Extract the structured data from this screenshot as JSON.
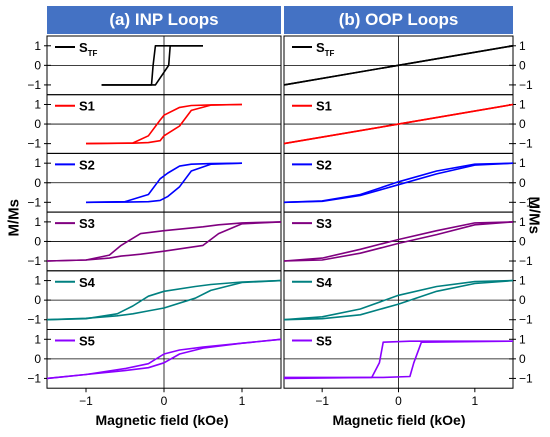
{
  "headers": {
    "left": "(a) INP Loops",
    "right": "(b) OOP Loops"
  },
  "ylabel": "M/Ms",
  "xlabel": "Magnetic field (kOe)",
  "chart_data": [
    {
      "type": "line",
      "title": "(a) INP Loops",
      "xlabel": "Magnetic field (kOe)",
      "ylabel": "M/Ms",
      "xlim": [
        -1.5,
        1.5
      ],
      "xticks": [
        -1,
        0,
        1
      ],
      "ylim": [
        -1.5,
        1.5
      ],
      "yticks": [
        -1,
        0,
        1
      ],
      "grid": false,
      "panels": [
        {
          "label": "S_TF",
          "color": "#000000",
          "x": [
            -0.8,
            -0.16,
            -0.14,
            -0.11,
            0.06,
            0.08,
            0.5
          ],
          "branch_down": [
            -1,
            -1,
            0.0,
            1,
            1,
            1,
            1
          ],
          "branch_up": [
            -1,
            -1,
            -1,
            -1,
            0.0,
            1,
            1
          ]
        },
        {
          "label": "S1",
          "color": "#ff0000",
          "x": [
            -1.0,
            -0.4,
            -0.2,
            -0.05,
            0.0,
            0.2,
            0.35,
            0.6,
            1.0
          ],
          "branch_down": [
            -1,
            -0.97,
            -0.6,
            0.2,
            0.45,
            0.85,
            0.95,
            0.98,
            1
          ],
          "branch_up": [
            -1,
            -0.98,
            -0.95,
            -0.85,
            -0.6,
            -0.1,
            0.7,
            0.97,
            1
          ]
        },
        {
          "label": "S2",
          "color": "#0000ff",
          "x": [
            -1.0,
            -0.5,
            -0.2,
            -0.05,
            0.05,
            0.2,
            0.35,
            0.6,
            1.0
          ],
          "branch_down": [
            -1,
            -0.97,
            -0.6,
            0.2,
            0.5,
            0.85,
            0.95,
            0.98,
            1
          ],
          "branch_up": [
            -1,
            -0.99,
            -0.97,
            -0.9,
            -0.7,
            -0.2,
            0.6,
            0.95,
            1
          ]
        },
        {
          "label": "S3",
          "color": "#800080",
          "x": [
            -1.5,
            -1.0,
            -0.7,
            -0.55,
            -0.3,
            0.0,
            0.5,
            0.7,
            1.0,
            1.5
          ],
          "branch_down": [
            -1,
            -0.95,
            -0.7,
            -0.2,
            0.4,
            0.55,
            0.75,
            0.85,
            0.95,
            1
          ],
          "branch_up": [
            -1,
            -0.95,
            -0.85,
            -0.75,
            -0.65,
            -0.5,
            -0.2,
            0.4,
            0.9,
            1
          ]
        },
        {
          "label": "S4",
          "color": "#008080",
          "x": [
            -1.5,
            -1.0,
            -0.6,
            -0.4,
            -0.2,
            0.0,
            0.4,
            0.6,
            1.0,
            1.5
          ],
          "branch_down": [
            -1,
            -0.95,
            -0.7,
            -0.3,
            0.2,
            0.45,
            0.7,
            0.8,
            0.93,
            1
          ],
          "branch_up": [
            -1,
            -0.93,
            -0.8,
            -0.7,
            -0.55,
            -0.4,
            0.1,
            0.5,
            0.9,
            1
          ]
        },
        {
          "label": "S5",
          "color": "#8b00ff",
          "x": [
            -1.5,
            -1.0,
            -0.5,
            -0.2,
            0.0,
            0.2,
            0.5,
            1.0,
            1.5
          ],
          "branch_down": [
            -1,
            -0.8,
            -0.5,
            -0.25,
            0.25,
            0.45,
            0.6,
            0.8,
            1
          ],
          "branch_up": [
            -1,
            -0.8,
            -0.6,
            -0.45,
            -0.2,
            0.25,
            0.55,
            0.8,
            1
          ]
        }
      ]
    },
    {
      "type": "line",
      "title": "(b) OOP Loops",
      "xlabel": "Magnetic field (kOe)",
      "ylabel": "M/Ms",
      "xlim": [
        -1.5,
        1.5
      ],
      "xticks": [
        -1,
        0,
        1
      ],
      "ylim": [
        -1.5,
        1.5
      ],
      "yticks": [
        -1,
        0,
        1
      ],
      "grid": false,
      "panels": [
        {
          "label": "S_TF",
          "color": "#000000",
          "x": [
            -1.5,
            0.0,
            1.5
          ],
          "branch_down": [
            -1,
            0,
            1
          ],
          "branch_up": [
            -1,
            0,
            1
          ]
        },
        {
          "label": "S1",
          "color": "#ff0000",
          "x": [
            -1.5,
            0.0,
            1.5
          ],
          "branch_down": [
            -1,
            0,
            1
          ],
          "branch_up": [
            -1,
            0,
            1
          ]
        },
        {
          "label": "S2",
          "color": "#0000ff",
          "x": [
            -1.5,
            -1.0,
            -0.5,
            0.0,
            0.5,
            1.0,
            1.5
          ],
          "branch_down": [
            -1,
            -0.93,
            -0.6,
            0.05,
            0.6,
            0.95,
            1
          ],
          "branch_up": [
            -1,
            -0.95,
            -0.65,
            -0.1,
            0.45,
            0.9,
            1
          ]
        },
        {
          "label": "S3",
          "color": "#800080",
          "x": [
            -1.5,
            -1.0,
            -0.5,
            0.0,
            0.5,
            1.0,
            1.5
          ],
          "branch_down": [
            -1,
            -0.85,
            -0.4,
            0.1,
            0.55,
            0.95,
            1
          ],
          "branch_up": [
            -1,
            -0.95,
            -0.6,
            -0.1,
            0.35,
            0.85,
            1
          ]
        },
        {
          "label": "S4",
          "color": "#008080",
          "x": [
            -1.5,
            -1.0,
            -0.5,
            0.0,
            0.5,
            1.0,
            1.5
          ],
          "branch_down": [
            -1,
            -0.85,
            -0.45,
            0.25,
            0.7,
            0.95,
            1
          ],
          "branch_up": [
            -1,
            -0.95,
            -0.75,
            -0.2,
            0.45,
            0.85,
            1
          ]
        },
        {
          "label": "S5",
          "color": "#8b00ff",
          "x": [
            -1.5,
            -0.35,
            -0.25,
            -0.2,
            0.15,
            0.2,
            0.3,
            1.5
          ],
          "branch_down": [
            -1,
            -0.95,
            -0.2,
            0.85,
            0.9,
            0.9,
            0.9,
            0.9
          ],
          "branch_up": [
            -0.95,
            -0.95,
            -0.95,
            -0.95,
            -0.9,
            -0.2,
            0.85,
            0.9
          ]
        }
      ]
    }
  ]
}
